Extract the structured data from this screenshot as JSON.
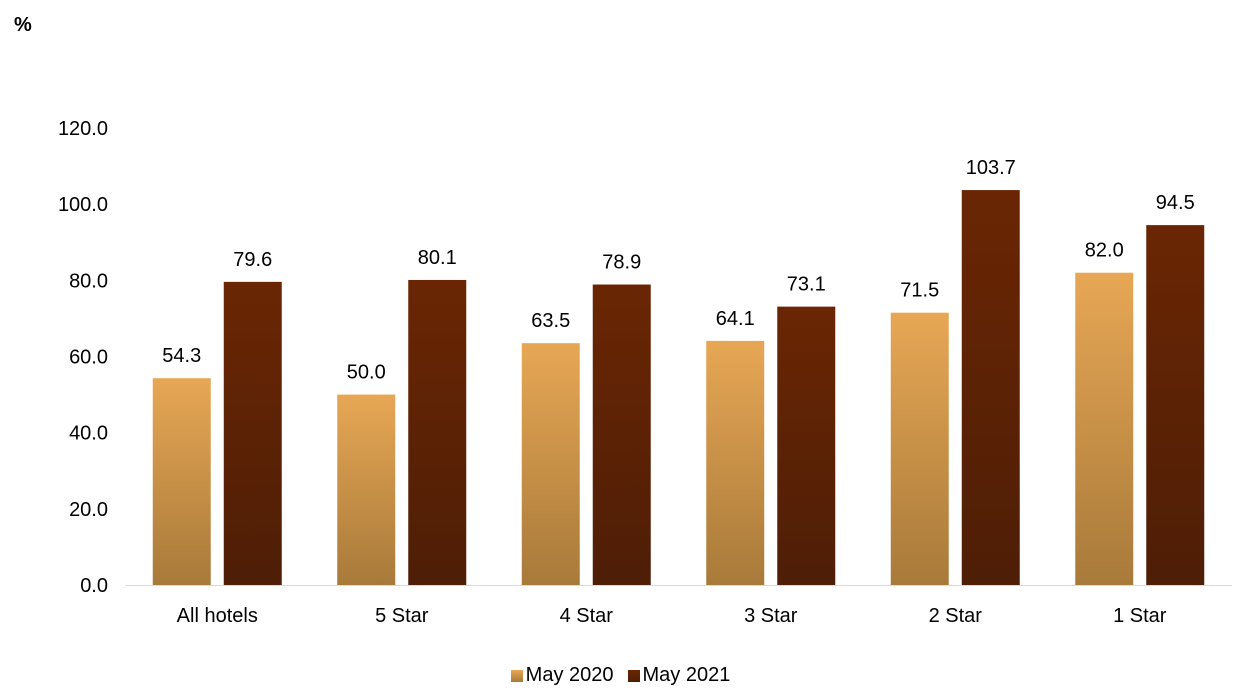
{
  "unit_label": "%",
  "chart_data": {
    "type": "bar",
    "title": "",
    "xlabel": "",
    "ylabel": "%",
    "ylim": [
      0,
      120
    ],
    "yticks": [
      "0.0",
      "20.0",
      "40.0",
      "60.0",
      "80.0",
      "100.0",
      "120.0"
    ],
    "grid": false,
    "legend_position": "bottom",
    "categories": [
      "All hotels",
      "5 Star",
      "4 Star",
      "3 Star",
      "2 Star",
      "1 Star"
    ],
    "series": [
      {
        "name": "May 2020",
        "color": "#E3A553",
        "values": [
          54.3,
          50.0,
          63.5,
          64.1,
          71.5,
          82.0
        ],
        "labels": [
          "54.3",
          "50.0",
          "63.5",
          "64.1",
          "71.5",
          "82.0"
        ]
      },
      {
        "name": "May 2021",
        "color": "#6B2A06",
        "values": [
          79.6,
          80.1,
          78.9,
          73.1,
          103.7,
          94.5
        ],
        "labels": [
          "79.6",
          "80.1",
          "78.9",
          "73.1",
          "103.7",
          "94.5"
        ]
      }
    ]
  }
}
